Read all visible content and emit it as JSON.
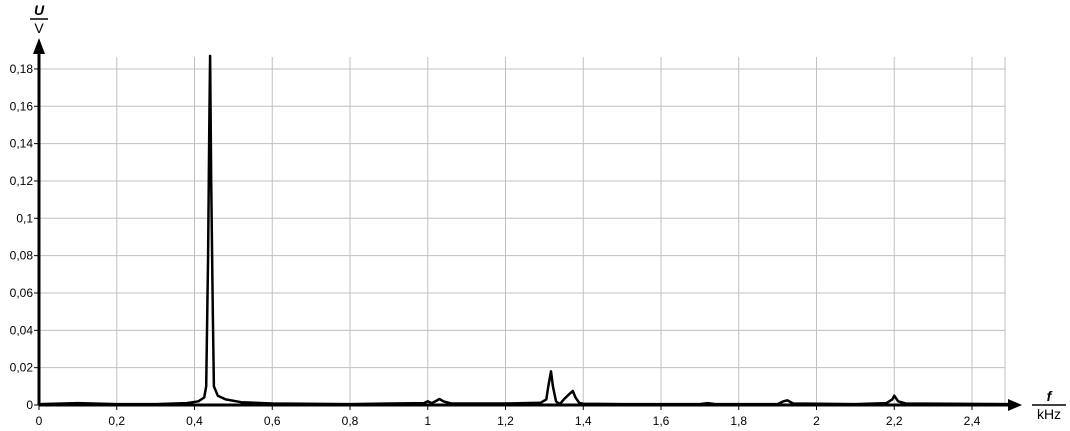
{
  "chart_data": {
    "type": "line",
    "title": "",
    "ylabel_symbol": "U",
    "ylabel_unit": "V",
    "xlabel_symbol": "f",
    "xlabel_unit": "kHz",
    "xlim": [
      0,
      2.5
    ],
    "ylim": [
      0,
      0.18
    ],
    "grid": true,
    "x_ticks": [
      "0",
      "0,2",
      "0,4",
      "0,6",
      "0,8",
      "1",
      "1,2",
      "1,4",
      "1,6",
      "1,8",
      "2",
      "2,2",
      "2,4"
    ],
    "x_tick_values": [
      0,
      0.2,
      0.4,
      0.6,
      0.8,
      1.0,
      1.2,
      1.4,
      1.6,
      1.8,
      2.0,
      2.2,
      2.4
    ],
    "y_ticks": [
      "0",
      "0,02",
      "0,04",
      "0,06",
      "0,08",
      "0,1",
      "0,12",
      "0,14",
      "0,16",
      "0,18"
    ],
    "y_tick_values": [
      0,
      0.02,
      0.04,
      0.06,
      0.08,
      0.1,
      0.12,
      0.14,
      0.16,
      0.18
    ],
    "line_color": "#000000",
    "grid_color": "#c0c0c0",
    "series": [
      {
        "x": [
          0,
          0.1,
          0.2,
          0.3,
          0.38,
          0.41,
          0.425,
          0.43,
          0.435,
          0.438,
          0.44,
          0.443,
          0.447,
          0.45,
          0.46,
          0.48,
          0.52,
          0.6,
          0.8,
          0.99,
          1.0,
          1.01,
          1.02,
          1.03,
          1.04,
          1.06,
          1.2,
          1.29,
          1.305,
          1.31,
          1.317,
          1.322,
          1.33,
          1.34,
          1.35,
          1.365,
          1.373,
          1.38,
          1.39,
          1.4,
          1.5,
          1.7,
          1.72,
          1.74,
          1.9,
          1.915,
          1.925,
          1.94,
          2.1,
          2.18,
          2.195,
          2.2,
          2.21,
          2.23,
          2.5
        ],
        "y": [
          0.0005,
          0.001,
          0.0005,
          0.0005,
          0.001,
          0.002,
          0.004,
          0.01,
          0.08,
          0.15,
          0.187,
          0.12,
          0.05,
          0.01,
          0.005,
          0.003,
          0.0015,
          0.0008,
          0.0005,
          0.001,
          0.002,
          0.001,
          0.002,
          0.0032,
          0.002,
          0.0008,
          0.0008,
          0.0012,
          0.003,
          0.01,
          0.018,
          0.01,
          0.002,
          0.0005,
          0.003,
          0.006,
          0.0075,
          0.004,
          0.001,
          0.0007,
          0.0005,
          0.0005,
          0.001,
          0.0005,
          0.0005,
          0.002,
          0.0025,
          0.0008,
          0.0005,
          0.001,
          0.003,
          0.005,
          0.002,
          0.0008,
          0.0005
        ]
      }
    ]
  }
}
